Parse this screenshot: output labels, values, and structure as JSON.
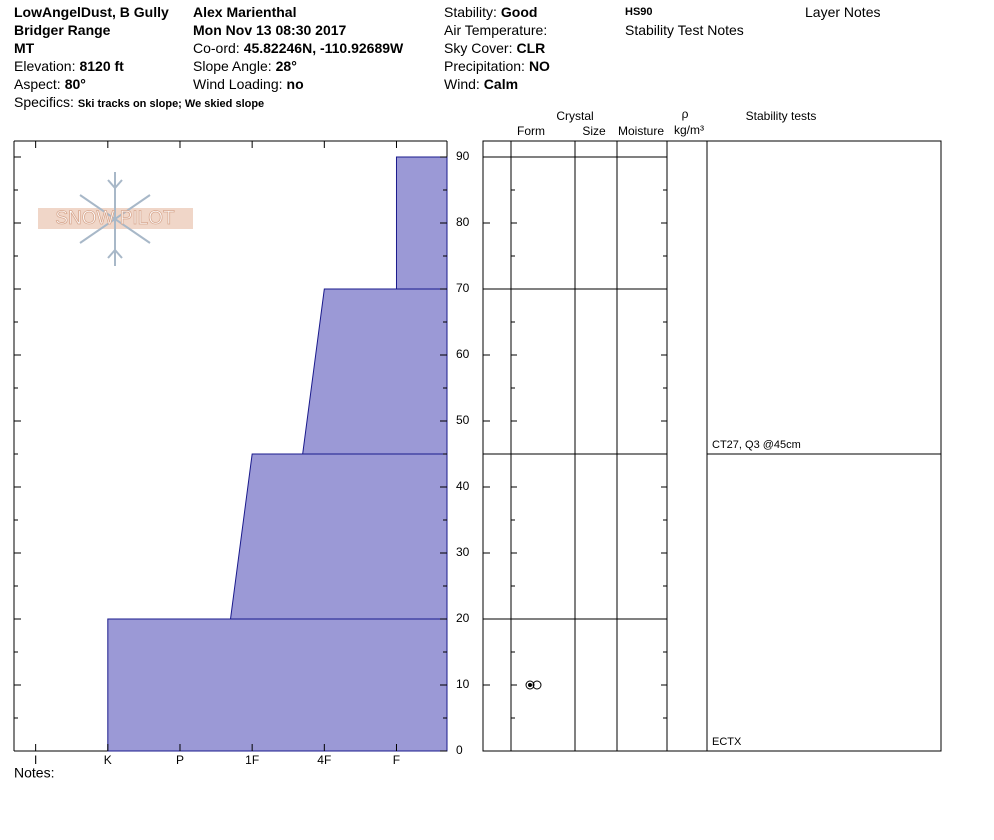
{
  "header": {
    "site": "LowAngelDust, B Gully",
    "range": "Bridger Range",
    "state": "MT",
    "elevation": {
      "label": "Elevation:",
      "value": "8120 ft"
    },
    "aspect": {
      "label": "Aspect:",
      "value": "80°"
    },
    "specifics": {
      "label": "Specifics:",
      "value": "Ski tracks on slope; We skied slope"
    },
    "observer": "Alex Marienthal",
    "date": "Mon Nov 13 08:30 2017",
    "coord": {
      "label": "Co-ord:",
      "value": "45.82246N, -110.92689W"
    },
    "slope_angle": {
      "label": "Slope Angle:",
      "value": "28°"
    },
    "wind_loading": {
      "label": "Wind Loading:",
      "value": "no"
    },
    "stability": {
      "label": "Stability:",
      "value": "Good"
    },
    "air_temperature": "Air Temperature:",
    "sky_cover": {
      "label": "Sky Cover:",
      "value": "CLR"
    },
    "precipitation": {
      "label": "Precipitation:",
      "value": "NO"
    },
    "wind": {
      "label": "Wind:",
      "value": "Calm"
    },
    "hs": "HS90",
    "stability_test_notes": "Stability Test Notes",
    "layer_notes": "Layer Notes"
  },
  "notes": "Notes:",
  "chart_data": {
    "type": "hardness-profile",
    "logo": "SNOW PILOT",
    "xlim": [
      -0.3,
      5.7
    ],
    "xticks": [
      {
        "value": 0,
        "label": "I"
      },
      {
        "value": 1,
        "label": "K"
      },
      {
        "value": 2,
        "label": "P"
      },
      {
        "value": 3,
        "label": "1F"
      },
      {
        "value": 4,
        "label": "4F"
      },
      {
        "value": 5,
        "label": "F"
      }
    ],
    "ylim": [
      0,
      90
    ],
    "yticks": [
      0,
      10,
      20,
      30,
      40,
      50,
      60,
      70,
      80,
      90
    ],
    "color": "#9b99d6",
    "layers": [
      {
        "bottom": 0,
        "top": 20,
        "hardness_bottom": 1,
        "hardness_top": 1
      },
      {
        "bottom": 20,
        "top": 45,
        "hardness_bottom": 2.7,
        "hardness_top": 3
      },
      {
        "bottom": 45,
        "top": 70,
        "hardness_bottom": 3.7,
        "hardness_top": 4
      },
      {
        "bottom": 70,
        "top": 90,
        "hardness_bottom": 5,
        "hardness_top": 5
      }
    ],
    "table_headers": {
      "crystal": "Crystal",
      "form": "Form",
      "size": "Size",
      "moisture": "Moisture",
      "rho": "ρ",
      "density_unit": "kg/m³",
      "stability_tests": "Stability tests"
    },
    "stability_tests": [
      {
        "depth": 45,
        "label": "CT27, Q3 @45cm"
      },
      {
        "depth": 0,
        "label": "ECTX"
      }
    ]
  }
}
